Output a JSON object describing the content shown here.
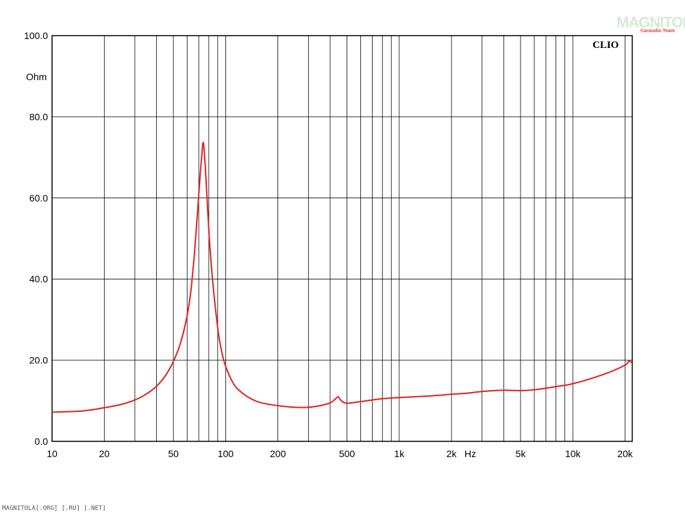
{
  "watermark": {
    "main": "MAGNITOLA",
    "sub": "Caraudio Team"
  },
  "footer": "MAGNITOLA[.ORG] [.RU] [.NET]",
  "chart_data": {
    "type": "line",
    "title": "",
    "brand_label": "CLIO",
    "ylabel": "Ohm",
    "xunit": "Hz",
    "xscale": "log",
    "xlim": [
      10,
      22000
    ],
    "ylim": [
      0,
      100
    ],
    "grid": true,
    "x_tick_labels": [
      {
        "x": 10,
        "label": "10"
      },
      {
        "x": 20,
        "label": "20"
      },
      {
        "x": 50,
        "label": "50"
      },
      {
        "x": 100,
        "label": "100"
      },
      {
        "x": 200,
        "label": "200"
      },
      {
        "x": 500,
        "label": "500"
      },
      {
        "x": 1000,
        "label": "1k"
      },
      {
        "x": 2000,
        "label": "2k"
      },
      {
        "x": 5000,
        "label": "5k"
      },
      {
        "x": 10000,
        "label": "10k"
      },
      {
        "x": 20000,
        "label": "20k"
      }
    ],
    "y_tick_labels": [
      {
        "y": 0,
        "label": "0.0"
      },
      {
        "y": 20,
        "label": "20.0"
      },
      {
        "y": 40,
        "label": "40.0"
      },
      {
        "y": 60,
        "label": "60.0"
      },
      {
        "y": 80,
        "label": "80.0"
      },
      {
        "y": 100,
        "label": "100.0"
      }
    ],
    "series": [
      {
        "color": "#e02020",
        "x": [
          10,
          15,
          20,
          25,
          30,
          35,
          40,
          45,
          50,
          55,
          60,
          63,
          66,
          69,
          71,
          73,
          74,
          75,
          77,
          80,
          84,
          90,
          95,
          100,
          110,
          120,
          140,
          160,
          200,
          250,
          300,
          350,
          400,
          430,
          445,
          455,
          470,
          500,
          600,
          800,
          1000,
          1500,
          2000,
          2500,
          3000,
          4000,
          5000,
          6000,
          8000,
          10000,
          15000,
          20000,
          21000,
          22000
        ],
        "y": [
          7.2,
          7.5,
          8.3,
          9.1,
          10.2,
          11.7,
          13.6,
          16.2,
          19.7,
          24.3,
          31.0,
          37.0,
          46.0,
          57.0,
          64.5,
          71.0,
          73.5,
          72.5,
          65.0,
          52.0,
          40.0,
          28.0,
          22.0,
          18.5,
          14.5,
          12.5,
          10.5,
          9.5,
          8.8,
          8.4,
          8.4,
          8.8,
          9.5,
          10.5,
          11.0,
          10.4,
          9.8,
          9.4,
          9.8,
          10.5,
          10.8,
          11.2,
          11.6,
          11.9,
          12.3,
          12.6,
          12.5,
          12.7,
          13.5,
          14.2,
          16.5,
          18.8,
          19.8,
          19.3
        ]
      }
    ]
  }
}
